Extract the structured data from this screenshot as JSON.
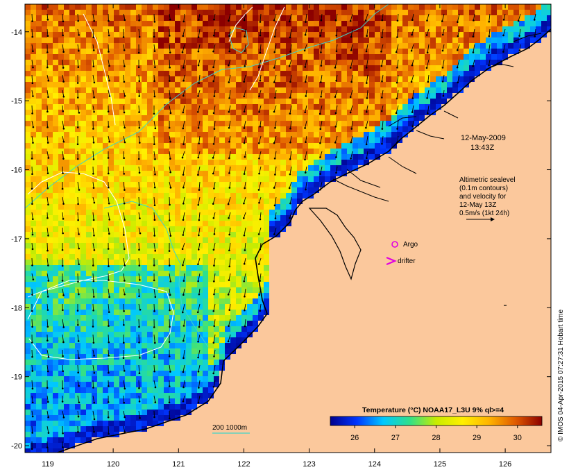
{
  "map": {
    "lon_ticks": [
      "119",
      "120",
      "121",
      "122",
      "123",
      "124",
      "125",
      "126"
    ],
    "lat_ticks": [
      "-14",
      "-15",
      "-16",
      "-17",
      "-18",
      "-19",
      "-20"
    ],
    "lon_range": [
      118.65,
      126.7
    ],
    "lat_range": [
      -20.1,
      -13.6
    ],
    "colors": {
      "land": "#fbc89c",
      "coast": "#000000",
      "isobath": "#3fd4c9",
      "sealevel_contour": "#ffffff",
      "argo_marker": "#e000e0",
      "drifter_marker": "#e000e0"
    }
  },
  "annotations": {
    "date_line1": "12-May-2009",
    "date_line2": "13:43Z",
    "alt_line1": "Altimetric sealevel",
    "alt_line2": "(0.1m contours)",
    "alt_line3": "and velocity for",
    "alt_line4": "12-May 13Z",
    "alt_line5": "0.5m/s (1kt 24h)",
    "argo_label": "Argo",
    "drifter_label": "drifter",
    "isobath_label": "200  1000m"
  },
  "colorbar": {
    "title": "Temperature (°C) NOAA17_L3U 9% ql>=4",
    "ticks": [
      "26",
      "27",
      "28",
      "29",
      "30"
    ],
    "range": [
      25.4,
      30.6
    ],
    "stops": [
      "#00008c",
      "#0035ff",
      "#00c8ff",
      "#30e08a",
      "#c8ec00",
      "#fff000",
      "#ffb400",
      "#e05a00",
      "#8c0000"
    ]
  },
  "credit": "© IMOS 04-Apr-2015 07:27:31 Hobart time"
}
